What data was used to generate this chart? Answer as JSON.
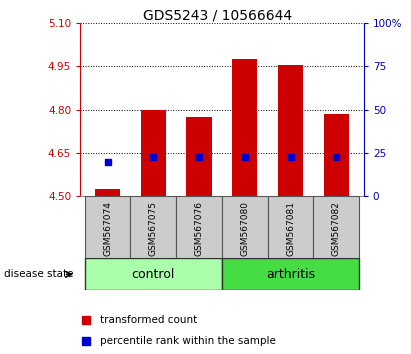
{
  "title": "GDS5243 / 10566644",
  "samples": [
    "GSM567074",
    "GSM567075",
    "GSM567076",
    "GSM567080",
    "GSM567081",
    "GSM567082"
  ],
  "bar_bottoms": [
    4.5,
    4.5,
    4.5,
    4.5,
    4.5,
    4.5
  ],
  "bar_tops": [
    4.525,
    4.8,
    4.775,
    4.975,
    4.955,
    4.785
  ],
  "percentile_values": [
    4.62,
    4.635,
    4.635,
    4.635,
    4.635,
    4.635
  ],
  "ylim_left": [
    4.5,
    5.1
  ],
  "ylim_right": [
    0,
    100
  ],
  "yticks_left": [
    4.5,
    4.65,
    4.8,
    4.95,
    5.1
  ],
  "yticks_right": [
    0,
    25,
    50,
    75,
    100
  ],
  "ytick_labels_right": [
    "0",
    "25",
    "50",
    "75",
    "100%"
  ],
  "bar_color": "#CC0000",
  "percentile_color": "#0000CC",
  "axis_color_left": "#CC0000",
  "axis_color_right": "#0000BB",
  "label_disease_state": "disease state",
  "label_transformed": "transformed count",
  "label_percentile": "percentile rank within the sample",
  "group_label_control": "control",
  "group_label_arthritis": "arthritis",
  "color_control": "#AAFFAA",
  "color_arthritis": "#44DD44",
  "color_sample_box": "#CCCCCC",
  "bar_width": 0.55
}
